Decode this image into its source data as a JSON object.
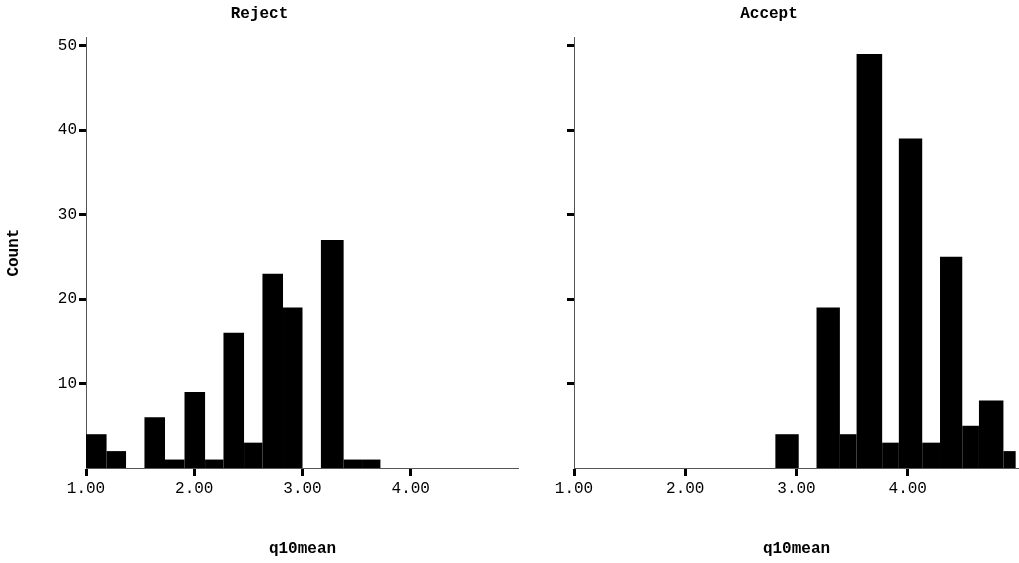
{
  "chart_data": [
    {
      "type": "histogram",
      "title": "Reject",
      "xlabel": "q10mean",
      "ylabel": "Count",
      "color": "#000000",
      "grid": false,
      "bins": [
        1.0,
        1.19,
        1.37,
        1.54,
        1.73,
        1.91,
        2.1,
        2.27,
        2.46,
        2.63,
        2.82,
        3.0,
        3.17,
        3.38,
        3.55,
        3.72
      ],
      "values": [
        4,
        2,
        0,
        6,
        1,
        9,
        1,
        16,
        3,
        23,
        19,
        0,
        27,
        1,
        1
      ],
      "xlim": [
        1,
        5
      ],
      "xticks": [
        {
          "value": 1,
          "label": "1.00"
        },
        {
          "value": 2,
          "label": "2.00"
        },
        {
          "value": 3,
          "label": "3.00"
        },
        {
          "value": 4,
          "label": "4.00"
        }
      ],
      "ylim": [
        0,
        51
      ],
      "yticks": [
        10,
        20,
        30,
        40,
        50
      ]
    },
    {
      "type": "histogram",
      "title": "Accept",
      "xlabel": "q10mean",
      "color": "#000000",
      "grid": false,
      "tick_labels": "x",
      "bins": [
        2.81,
        3.02,
        3.18,
        3.39,
        3.54,
        3.77,
        3.92,
        4.13,
        4.29,
        4.49,
        4.64,
        4.86,
        4.97
      ],
      "values": [
        4,
        0,
        19,
        4,
        49,
        3,
        39,
        3,
        25,
        5,
        8,
        2
      ],
      "xlim": [
        1,
        5
      ],
      "xticks": [
        {
          "value": 1,
          "label": "1.00"
        },
        {
          "value": 2,
          "label": "2.00"
        },
        {
          "value": 3,
          "label": "3.00"
        },
        {
          "value": 4,
          "label": "4.00"
        }
      ],
      "ylim": [
        0,
        51
      ],
      "yticks": [
        10,
        20,
        30,
        40,
        50
      ]
    }
  ]
}
